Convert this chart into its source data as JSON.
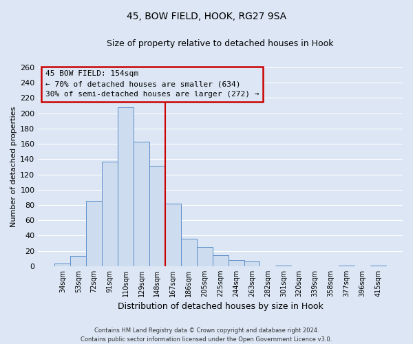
{
  "title": "45, BOW FIELD, HOOK, RG27 9SA",
  "subtitle": "Size of property relative to detached houses in Hook",
  "xlabel": "Distribution of detached houses by size in Hook",
  "ylabel": "Number of detached properties",
  "categories": [
    "34sqm",
    "53sqm",
    "72sqm",
    "91sqm",
    "110sqm",
    "129sqm",
    "148sqm",
    "167sqm",
    "186sqm",
    "205sqm",
    "225sqm",
    "244sqm",
    "263sqm",
    "282sqm",
    "301sqm",
    "320sqm",
    "339sqm",
    "358sqm",
    "377sqm",
    "396sqm",
    "415sqm"
  ],
  "values": [
    3,
    13,
    85,
    137,
    208,
    163,
    131,
    82,
    36,
    25,
    14,
    8,
    6,
    0,
    1,
    0,
    0,
    0,
    1,
    0,
    1
  ],
  "bar_color": "#cddcee",
  "bar_edge_color": "#5b8fc9",
  "vline_color": "#cc0000",
  "ylim": [
    0,
    260
  ],
  "yticks": [
    0,
    20,
    40,
    60,
    80,
    100,
    120,
    140,
    160,
    180,
    200,
    220,
    240,
    260
  ],
  "annotation_title": "45 BOW FIELD: 154sqm",
  "annotation_line1": "← 70% of detached houses are smaller (634)",
  "annotation_line2": "30% of semi-detached houses are larger (272) →",
  "annotation_box_color": "#cc0000",
  "footer1": "Contains HM Land Registry data © Crown copyright and database right 2024.",
  "footer2": "Contains public sector information licensed under the Open Government Licence v3.0.",
  "background_color": "#dce6f4",
  "grid_color": "#ffffff"
}
